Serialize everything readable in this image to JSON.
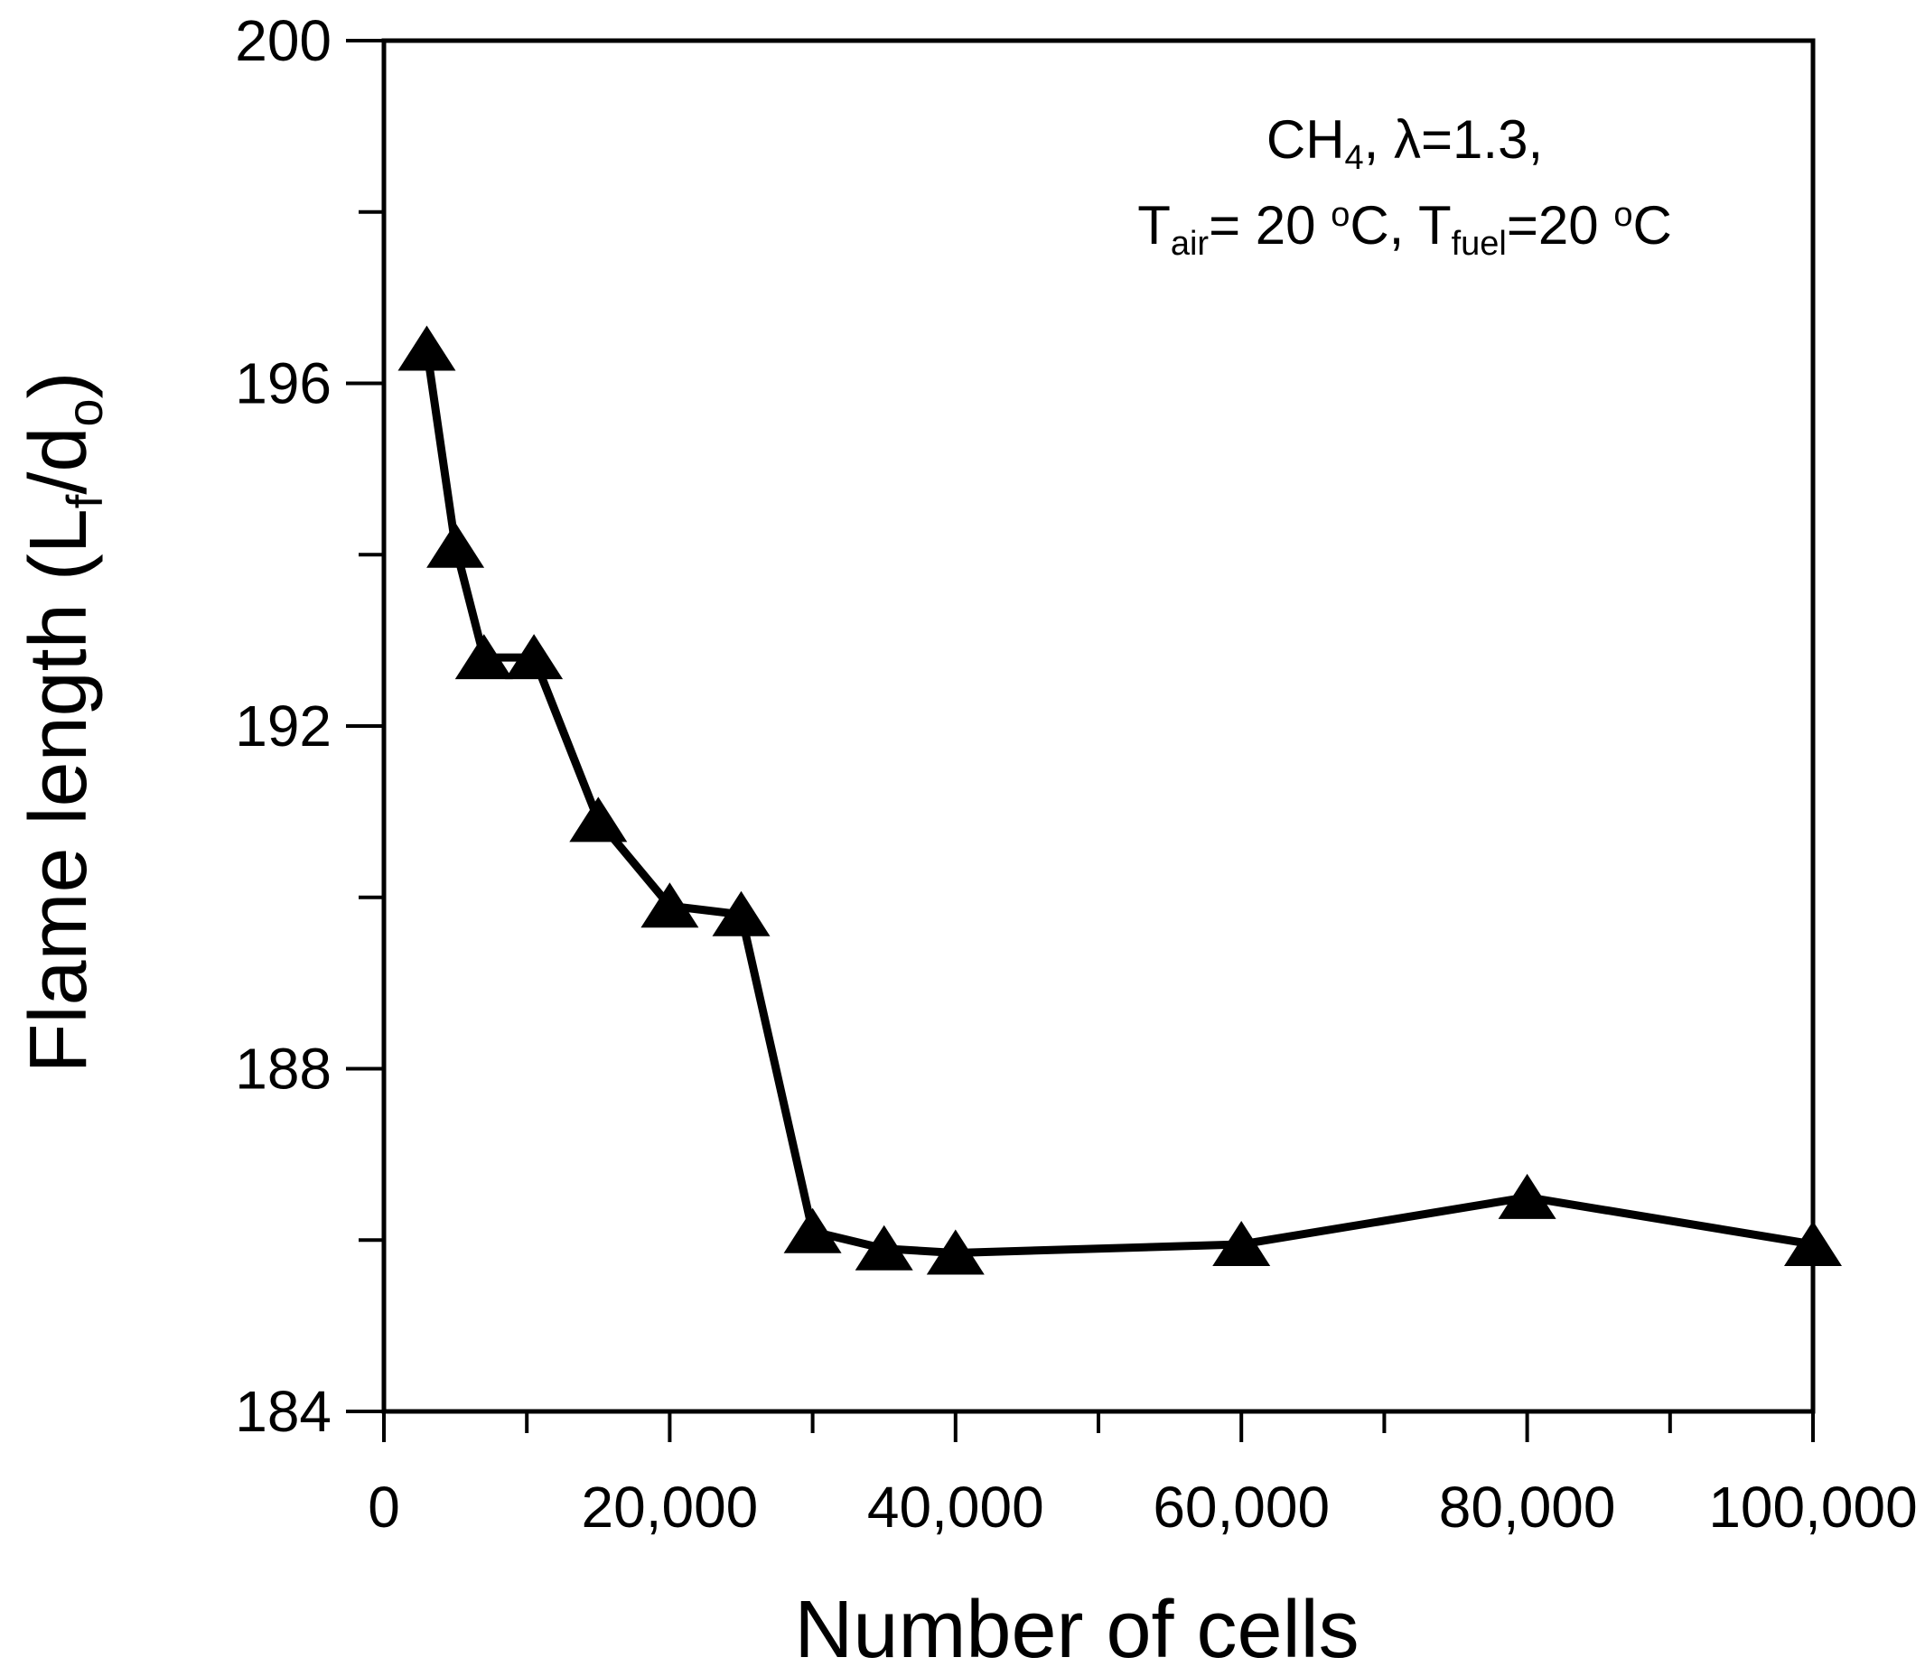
{
  "chart_data": {
    "type": "line",
    "xlabel": "Number of cells",
    "ylabel": {
      "prefix": "Flame length (L",
      "sub1": "f",
      "mid": "/d",
      "sub2": "o",
      "suffix": ")"
    },
    "xlim": [
      0,
      100000
    ],
    "ylim": [
      184,
      200
    ],
    "x_ticks": [
      0,
      20000,
      40000,
      60000,
      80000,
      100000
    ],
    "x_tick_labels": [
      "0",
      "20,000",
      "40,000",
      "60,000",
      "80,000",
      "100,000"
    ],
    "x_minor_step": 10000,
    "y_ticks": [
      184,
      188,
      192,
      196,
      200
    ],
    "y_tick_labels": [
      "184",
      "188",
      "192",
      "196",
      "200"
    ],
    "y_minor_step": 2,
    "grid": false,
    "marker": "triangle",
    "colors": {
      "line": "#000000",
      "marker": "#000000",
      "axis": "#000000"
    },
    "series": [
      {
        "x": [
          3000,
          5000,
          7000,
          10500,
          15000,
          20000,
          25000,
          30000,
          35000,
          40000,
          60000,
          80000,
          100000
        ],
        "y": [
          196.4,
          194.1,
          192.8,
          192.8,
          190.9,
          189.9,
          189.8,
          186.1,
          185.9,
          185.85,
          185.95,
          186.5,
          185.95
        ]
      }
    ],
    "annotation": {
      "line1": {
        "species": "CH",
        "species_sub": "4",
        "rest": ", λ=1.3,"
      },
      "line2": {
        "t1": "T",
        "t1_sub": "air",
        "t1_val": "= 20 ",
        "t1_deg": "o",
        "t1_unit": "C, ",
        "t2": "T",
        "t2_sub": "fuel",
        "t2_val": "=20 ",
        "t2_deg": "o",
        "t2_unit": "C"
      }
    }
  }
}
